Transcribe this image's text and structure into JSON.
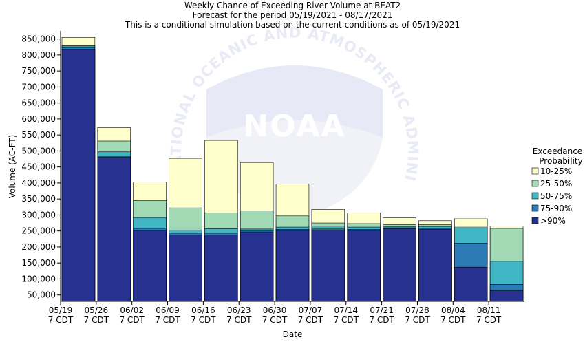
{
  "chart_data": {
    "type": "bar",
    "title": "Weekly Chance of Exceeding River Volume at BEAT2",
    "subtitle": "Forecast for the period 05/19/2021 - 08/17/2021",
    "subtitle2": "This is a conditional simulation based on the current conditions as of 05/19/2021",
    "xlabel": "Date",
    "ylabel": "Volume (AC-FT)",
    "ylim": [
      30000,
      875000
    ],
    "y_ticks": [
      50000,
      100000,
      150000,
      200000,
      250000,
      300000,
      350000,
      400000,
      450000,
      500000,
      550000,
      600000,
      650000,
      700000,
      750000,
      800000,
      850000
    ],
    "y_tick_labels": [
      "50,000",
      "100,000",
      "150,000",
      "200,000",
      "250,000",
      "300,000",
      "350,000",
      "400,000",
      "450,000",
      "500,000",
      "550,000",
      "600,000",
      "650,000",
      "700,000",
      "750,000",
      "800,000",
      "850,000"
    ],
    "x_tick_labels": [
      [
        "05/19",
        "7 CDT"
      ],
      [
        "05/26",
        "7 CDT"
      ],
      [
        "06/02",
        "7 CDT"
      ],
      [
        "06/09",
        "7 CDT"
      ],
      [
        "06/16",
        "7 CDT"
      ],
      [
        "06/23",
        "7 CDT"
      ],
      [
        "06/30",
        "7 CDT"
      ],
      [
        "07/07",
        "7 CDT"
      ],
      [
        "07/14",
        "7 CDT"
      ],
      [
        "07/21",
        "7 CDT"
      ],
      [
        "07/28",
        "7 CDT"
      ],
      [
        "08/04",
        "7 CDT"
      ],
      [
        "08/11",
        "7 CDT"
      ]
    ],
    "legend_title": [
      "Exceedance",
      "Probability"
    ],
    "legend_position": "right",
    "series": [
      {
        "name": ">90%",
        "color": "#27318f",
        "values": [
          818000,
          480000,
          250000,
          237000,
          237000,
          247000,
          250000,
          252000,
          250000,
          257000,
          255000,
          137000,
          63000
        ]
      },
      {
        "name": "75-90%",
        "color": "#2c7bb6",
        "values": [
          822000,
          482000,
          258000,
          243000,
          243000,
          250000,
          255000,
          256000,
          255000,
          260000,
          258000,
          212000,
          83000
        ]
      },
      {
        "name": "50-75%",
        "color": "#41b6c4",
        "values": [
          828000,
          497000,
          292000,
          253000,
          257000,
          256000,
          262000,
          265000,
          262000,
          264000,
          264000,
          260000,
          155000
        ]
      },
      {
        "name": "25-50%",
        "color": "#a1dab4",
        "values": [
          830000,
          531000,
          345000,
          322000,
          306000,
          313000,
          297000,
          275000,
          273000,
          270000,
          270000,
          265000,
          258000
        ]
      },
      {
        "name": "10-25%",
        "color": "#ffffcc",
        "values": [
          855000,
          573000,
          403000,
          477000,
          533000,
          464000,
          397000,
          317000,
          306000,
          291000,
          282000,
          288000,
          265000
        ]
      }
    ],
    "legend_order": [
      "10-25%",
      "25-50%",
      "50-75%",
      "75-90%",
      ">90%"
    ],
    "watermark": [
      "NOAA",
      "NATIONAL OCEANIC AND ATMOSPHERIC ADMINISTRATION"
    ]
  }
}
